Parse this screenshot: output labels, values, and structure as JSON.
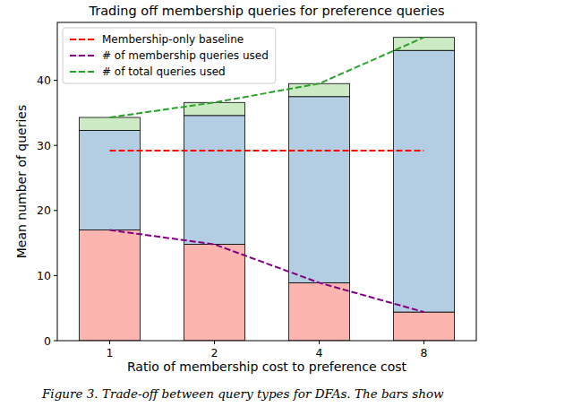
{
  "chart_data": {
    "type": "bar",
    "stacked": true,
    "title": "Trading off membership queries for preference queries",
    "x_label": "Ratio of membership cost to preference cost",
    "y_label": "Mean number of queries",
    "caption": "Figure 3. Trade-off between query types for DFAs. The bars show",
    "categories": [
      "1",
      "2",
      "4",
      "8"
    ],
    "ylim": [
      0,
      48.9
    ],
    "yticks": [
      0,
      10,
      20,
      30,
      40
    ],
    "grid": false,
    "legend": "upper left",
    "series": [
      {
        "type": "bar",
        "color": "#fbb4ae",
        "values": [
          17.0,
          14.8,
          8.9,
          4.4
        ]
      },
      {
        "type": "bar",
        "color": "#b3cde3",
        "values": [
          15.3,
          19.8,
          28.6,
          40.2
        ]
      },
      {
        "type": "bar",
        "color": "#ccebc5",
        "values": [
          2.0,
          2.0,
          2.0,
          2.0
        ]
      },
      {
        "type": "line",
        "name": "Membership-only baseline",
        "color": "#ff0000",
        "line_style": "dashed",
        "values": [
          29.2,
          29.2,
          29.2,
          29.2
        ]
      },
      {
        "type": "line",
        "name": "# of membership queries used",
        "color": "#800080",
        "line_style": "dashed",
        "values": [
          17.0,
          14.8,
          8.9,
          4.4
        ]
      },
      {
        "type": "line",
        "name": "# of total queries used",
        "color": "#2ca02c",
        "line_style": "dashed",
        "values": [
          34.3,
          36.6,
          39.5,
          46.6
        ]
      }
    ]
  }
}
